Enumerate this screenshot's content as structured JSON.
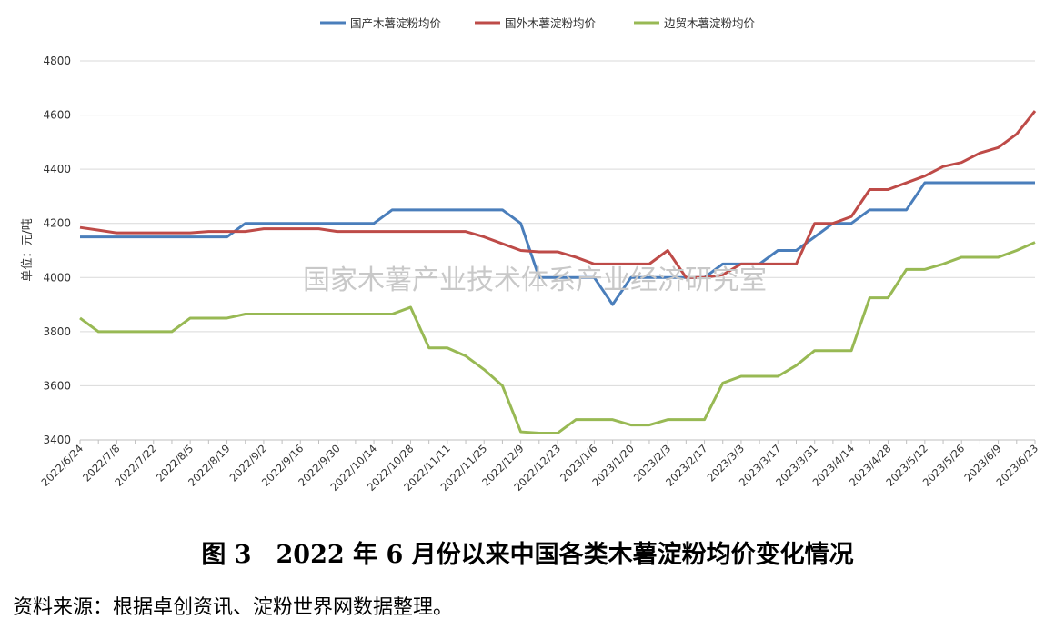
{
  "chart_data": {
    "type": "line",
    "y_label": "单位：元/吨",
    "watermark": "国家木薯产业技术体系产业经济研究室",
    "caption": "图 3　2022 年 6 月份以来中国各类木薯淀粉均价变化情况",
    "source": "资料来源：根据卓创资讯、淀粉世界网数据整理。",
    "categories": [
      "2022/6/24",
      null,
      "2022/7/8",
      null,
      "2022/7/22",
      null,
      "2022/8/5",
      null,
      "2022/8/19",
      null,
      "2022/9/2",
      null,
      "2022/9/16",
      null,
      "2022/9/30",
      null,
      "2022/10/14",
      null,
      "2022/10/28",
      null,
      "2022/11/11",
      null,
      "2022/11/25",
      null,
      "2022/12/9",
      null,
      "2022/12/23",
      null,
      "2023/1/6",
      null,
      "2023/1/20",
      null,
      "2023/2/3",
      null,
      "2023/2/17",
      null,
      "2023/3/3",
      null,
      "2023/3/17",
      null,
      "2023/3/31",
      null,
      "2023/4/14",
      null,
      "2023/4/28",
      null,
      "2023/5/12",
      null,
      "2023/5/26",
      null,
      "2023/6/9",
      null,
      "2023/6/23"
    ],
    "series": [
      {
        "name": "国产木薯淀粉均价",
        "color": "#4a7ebb",
        "values": [
          4150,
          4150,
          4150,
          4150,
          4150,
          4150,
          4150,
          4150,
          4150,
          4200,
          4200,
          4200,
          4200,
          4200,
          4200,
          4200,
          4200,
          4250,
          4250,
          4250,
          4250,
          4250,
          4250,
          4250,
          4200,
          4000,
          4000,
          4000,
          4000,
          3900,
          4000,
          4000,
          4000,
          4000,
          4000,
          4050,
          4050,
          4050,
          4100,
          4100,
          4150,
          4200,
          4200,
          4250,
          4250,
          4250,
          4350,
          4350,
          4350,
          4350,
          4350,
          4350,
          4350
        ]
      },
      {
        "name": "国外木薯淀粉均价",
        "color": "#be4b48",
        "values": [
          4185,
          4175,
          4165,
          4165,
          4165,
          4165,
          4165,
          4170,
          4170,
          4170,
          4180,
          4180,
          4180,
          4180,
          4170,
          4170,
          4170,
          4170,
          4170,
          4170,
          4170,
          4170,
          4150,
          4125,
          4100,
          4095,
          4095,
          4075,
          4050,
          4050,
          4050,
          4050,
          4100,
          4000,
          4000,
          4010,
          4050,
          4050,
          4050,
          4050,
          4200,
          4200,
          4225,
          4325,
          4325,
          4350,
          4375,
          4410,
          4425,
          4460,
          4480,
          4530,
          4615
        ]
      },
      {
        "name": "边贸木薯淀粉均价",
        "color": "#98b954",
        "values": [
          3850,
          3800,
          3800,
          3800,
          3800,
          3800,
          3850,
          3850,
          3850,
          3865,
          3865,
          3865,
          3865,
          3865,
          3865,
          3865,
          3865,
          3865,
          3890,
          3740,
          3740,
          3710,
          3660,
          3600,
          3430,
          3425,
          3425,
          3475,
          3475,
          3475,
          3455,
          3455,
          3475,
          3475,
          3475,
          3610,
          3635,
          3635,
          3635,
          3675,
          3730,
          3730,
          3730,
          3925,
          3925,
          4030,
          4030,
          4050,
          4075,
          4075,
          4075,
          4100,
          4130
        ]
      }
    ],
    "ylim": [
      3400,
      4800
    ],
    "yticks": [
      3400,
      3600,
      3800,
      4000,
      4200,
      4400,
      4600,
      4800
    ],
    "grid": true,
    "legend": "top"
  }
}
